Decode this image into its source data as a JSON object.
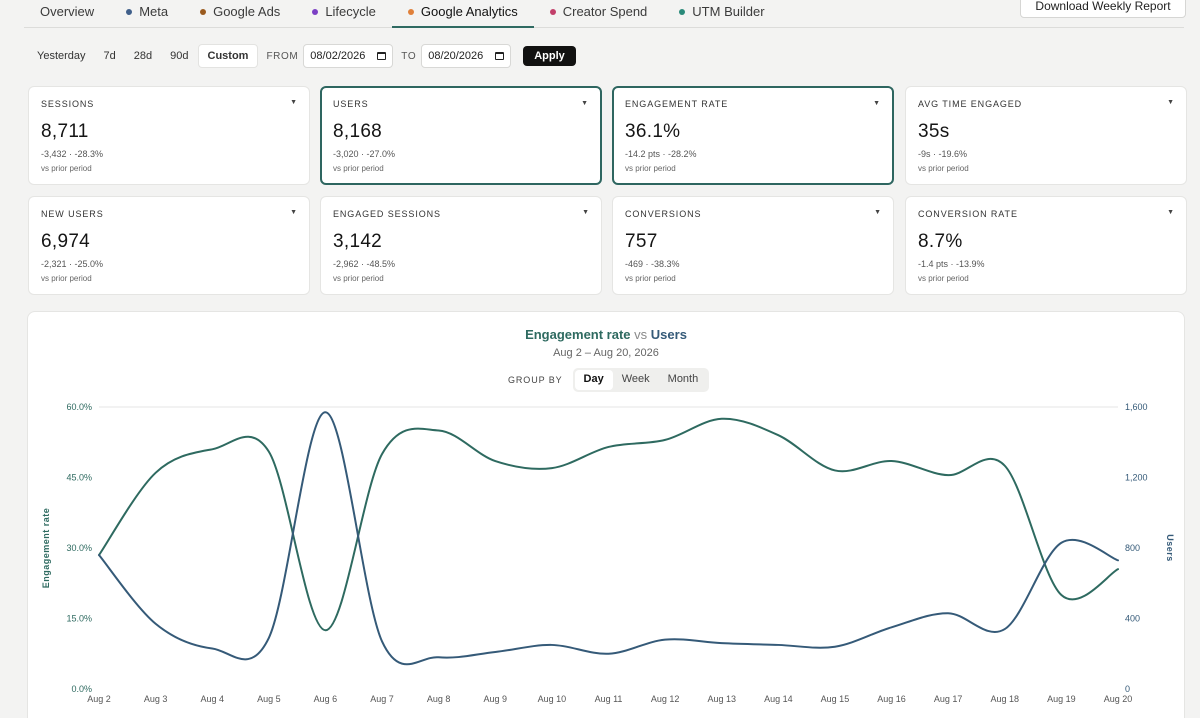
{
  "tabs": [
    {
      "label": "Overview",
      "dot": null,
      "active": false
    },
    {
      "label": "Meta",
      "dot": "#3f5f8a",
      "active": false
    },
    {
      "label": "Google Ads",
      "dot": "#9a5a1e",
      "active": false
    },
    {
      "label": "Lifecycle",
      "dot": "#7b3fc4",
      "active": false
    },
    {
      "label": "Google Analytics",
      "dot": "#e0803a",
      "active": true
    },
    {
      "label": "Creator Spend",
      "dot": "#c23f6a",
      "active": false
    },
    {
      "label": "UTM Builder",
      "dot": "#2a8a7a",
      "active": false
    }
  ],
  "download_label": "Download Weekly Report",
  "daterange": {
    "presets": [
      "Yesterday",
      "7d",
      "28d",
      "90d",
      "Custom"
    ],
    "active_preset": "Custom",
    "from_label": "FROM",
    "from_value": "08/02/2026",
    "to_label": "TO",
    "to_value": "08/20/2026",
    "apply_label": "Apply"
  },
  "kpis": [
    {
      "label": "SESSIONS",
      "value": "8,711",
      "delta": "-3,432 · -28.3%",
      "vs": "vs prior period",
      "selected": false
    },
    {
      "label": "USERS",
      "value": "8,168",
      "delta": "-3,020 · -27.0%",
      "vs": "vs prior period",
      "selected": true
    },
    {
      "label": "ENGAGEMENT RATE",
      "value": "36.1%",
      "delta": "-14.2 pts · -28.2%",
      "vs": "vs prior period",
      "selected": true
    },
    {
      "label": "AVG TIME ENGAGED",
      "value": "35s",
      "delta": "-9s · -19.6%",
      "vs": "vs prior period",
      "selected": false
    },
    {
      "label": "NEW USERS",
      "value": "6,974",
      "delta": "-2,321 · -25.0%",
      "vs": "vs prior period",
      "selected": false
    },
    {
      "label": "ENGAGED SESSIONS",
      "value": "3,142",
      "delta": "-2,962 · -48.5%",
      "vs": "vs prior period",
      "selected": false
    },
    {
      "label": "CONVERSIONS",
      "value": "757",
      "delta": "-469 · -38.3%",
      "vs": "vs prior period",
      "selected": false
    },
    {
      "label": "CONVERSION RATE",
      "value": "8.7%",
      "delta": "-1.4 pts · -13.9%",
      "vs": "vs prior period",
      "selected": false
    }
  ],
  "chart": {
    "title_part1": "Engagement rate",
    "title_vs": "vs",
    "title_part2": "Users",
    "subtitle": "Aug 2 – Aug 20, 2026",
    "groupby_label": "GROUP BY",
    "groupby_options": [
      "Day",
      "Week",
      "Month"
    ],
    "groupby_active": "Day"
  },
  "chart_data": {
    "type": "line",
    "x": [
      "Aug 2",
      "Aug 3",
      "Aug 4",
      "Aug 5",
      "Aug 6",
      "Aug 7",
      "Aug 8",
      "Aug 9",
      "Aug 10",
      "Aug 11",
      "Aug 12",
      "Aug 13",
      "Aug 14",
      "Aug 15",
      "Aug 16",
      "Aug 17",
      "Aug 18",
      "Aug 19",
      "Aug 20"
    ],
    "series": [
      {
        "name": "Engagement rate",
        "axis": "left",
        "color": "#2e6a60",
        "values": [
          28.5,
          46.0,
          51.0,
          50.5,
          12.5,
          50.0,
          55.0,
          48.5,
          47.0,
          51.5,
          53.0,
          57.5,
          54.0,
          46.5,
          48.5,
          45.5,
          47.5,
          20.0,
          25.5
        ]
      },
      {
        "name": "Users",
        "axis": "right",
        "color": "#355a78",
        "values": [
          760,
          370,
          230,
          290,
          1570,
          270,
          180,
          210,
          250,
          200,
          280,
          260,
          250,
          240,
          350,
          430,
          340,
          830,
          730
        ]
      }
    ],
    "ylabel_left": "Engagement rate",
    "ylabel_right": "Users",
    "ylim_left": [
      0,
      60
    ],
    "ylim_right": [
      0,
      1600
    ],
    "yticks_left": [
      "60.0%",
      "45.0%",
      "30.0%",
      "15.0%",
      "0.0%"
    ],
    "yticks_right": [
      "1,600",
      "1,200",
      "800",
      "400",
      "0"
    ],
    "grid": "top line only",
    "legend": "none"
  }
}
